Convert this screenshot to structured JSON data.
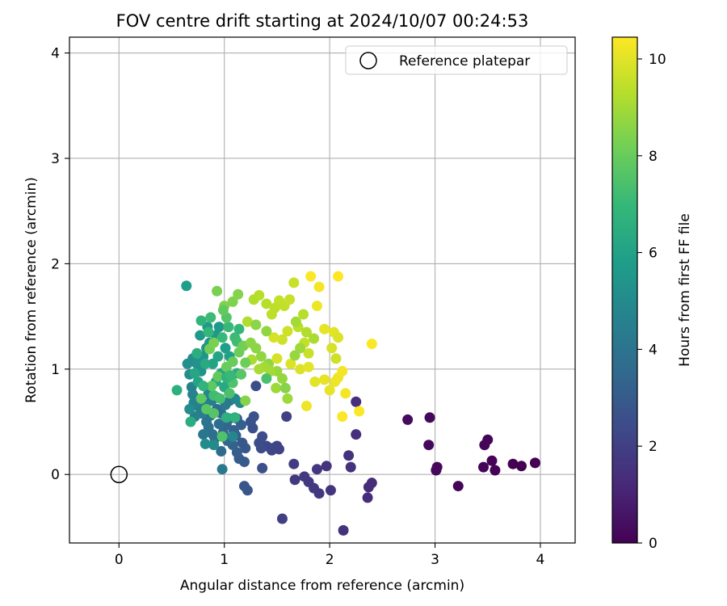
{
  "chart_data": {
    "type": "scatter",
    "title": "FOV centre drift starting at 2024/10/07 00:24:53",
    "xlabel": "Angular distance from reference (arcmin)",
    "ylabel": "Rotation from reference (arcmin)",
    "xlim": [
      -0.47,
      4.33
    ],
    "ylim": [
      -0.65,
      4.15
    ],
    "xticks": [
      0,
      1,
      2,
      3,
      4
    ],
    "yticks": [
      0,
      1,
      2,
      3,
      4
    ],
    "xtick_labels": [
      "0",
      "1",
      "2",
      "3",
      "4"
    ],
    "ytick_labels": [
      "0",
      "1",
      "2",
      "3",
      "4"
    ],
    "grid": true,
    "legend": {
      "placement": "top-right",
      "entries": [
        "Reference platepar"
      ]
    },
    "reference_point": {
      "name": "Reference platepar",
      "x": 0,
      "y": 0
    },
    "colorbar": {
      "label": "Hours from first FF file",
      "colormap": "viridis",
      "range": [
        0,
        10.45
      ],
      "ticks": [
        0,
        2,
        4,
        6,
        8,
        10
      ],
      "tick_labels": [
        "0",
        "2",
        "4",
        "6",
        "8",
        "10"
      ]
    },
    "colormap_stops": [
      "#440154",
      "#482878",
      "#3e4989",
      "#31688e",
      "#26828e",
      "#1f9e89",
      "#35b779",
      "#6ece58",
      "#b5de2b",
      "#fde725"
    ],
    "points": [
      [
        3.95,
        0.11,
        0.0
      ],
      [
        3.82,
        0.08,
        0.0
      ],
      [
        3.74,
        0.1,
        0.0
      ],
      [
        3.57,
        0.04,
        0.05
      ],
      [
        3.54,
        0.13,
        0.05
      ],
      [
        3.5,
        0.33,
        0.1
      ],
      [
        3.47,
        0.28,
        0.1
      ],
      [
        3.46,
        0.07,
        0.1
      ],
      [
        3.22,
        -0.11,
        0.15
      ],
      [
        3.02,
        0.07,
        0.2
      ],
      [
        3.01,
        0.04,
        0.2
      ],
      [
        2.95,
        0.54,
        0.25
      ],
      [
        2.94,
        0.28,
        0.25
      ],
      [
        2.74,
        0.52,
        0.3
      ],
      [
        2.4,
        -0.08,
        1.3
      ],
      [
        2.37,
        -0.12,
        1.3
      ],
      [
        2.36,
        -0.22,
        1.35
      ],
      [
        2.25,
        0.69,
        1.4
      ],
      [
        2.25,
        0.38,
        1.4
      ],
      [
        2.2,
        0.07,
        1.5
      ],
      [
        2.18,
        0.18,
        1.5
      ],
      [
        2.13,
        -0.53,
        1.5
      ],
      [
        2.01,
        -0.15,
        1.6
      ],
      [
        1.97,
        0.08,
        1.6
      ],
      [
        1.9,
        -0.18,
        1.7
      ],
      [
        1.88,
        0.05,
        1.7
      ],
      [
        1.85,
        -0.13,
        1.75
      ],
      [
        1.8,
        -0.07,
        1.75
      ],
      [
        1.76,
        -0.02,
        1.8
      ],
      [
        1.67,
        -0.05,
        1.8
      ],
      [
        1.66,
        0.1,
        1.9
      ],
      [
        1.59,
        0.55,
        2.0
      ],
      [
        1.55,
        -0.42,
        2.0
      ],
      [
        1.52,
        0.24,
        2.1
      ],
      [
        1.5,
        0.27,
        2.1
      ],
      [
        1.46,
        0.25,
        2.2
      ],
      [
        1.45,
        0.23,
        2.2
      ],
      [
        1.4,
        0.27,
        2.3
      ],
      [
        1.36,
        0.36,
        2.4
      ],
      [
        1.35,
        0.25,
        2.4
      ],
      [
        1.33,
        0.3,
        2.5
      ],
      [
        1.3,
        0.84,
        2.5
      ],
      [
        1.36,
        0.06,
        2.6
      ],
      [
        1.27,
        0.44,
        2.6
      ],
      [
        1.25,
        0.5,
        2.7
      ],
      [
        1.28,
        0.55,
        2.7
      ],
      [
        1.22,
        -0.15,
        2.8
      ],
      [
        1.19,
        -0.11,
        2.8
      ],
      [
        1.2,
        0.25,
        2.9
      ],
      [
        1.17,
        0.3,
        2.9
      ],
      [
        1.19,
        0.12,
        3.0
      ],
      [
        1.14,
        0.15,
        3.0
      ],
      [
        1.12,
        0.21,
        3.1
      ],
      [
        1.11,
        0.37,
        3.1
      ],
      [
        1.16,
        0.47,
        3.2
      ],
      [
        1.12,
        0.53,
        3.2
      ],
      [
        1.08,
        0.28,
        3.3
      ],
      [
        1.09,
        0.42,
        3.3
      ],
      [
        1.05,
        0.53,
        3.4
      ],
      [
        1.02,
        0.47,
        3.4
      ],
      [
        1.03,
        0.32,
        3.5
      ],
      [
        0.99,
        0.4,
        3.5
      ],
      [
        0.97,
        0.58,
        3.6
      ],
      [
        0.97,
        0.22,
        3.6
      ],
      [
        0.95,
        0.48,
        3.7
      ],
      [
        0.93,
        0.62,
        3.7
      ],
      [
        0.91,
        0.34,
        3.8
      ],
      [
        0.89,
        0.38,
        3.8
      ],
      [
        0.87,
        0.56,
        3.9
      ],
      [
        0.85,
        0.45,
        3.9
      ],
      [
        0.83,
        0.5,
        4.0
      ],
      [
        0.81,
        0.67,
        4.0
      ],
      [
        0.8,
        0.38,
        4.1
      ],
      [
        0.98,
        0.05,
        4.2
      ],
      [
        1.05,
        0.7,
        4.2
      ],
      [
        1.01,
        0.66,
        4.3
      ],
      [
        0.93,
        0.73,
        4.3
      ],
      [
        0.88,
        0.7,
        4.4
      ],
      [
        0.78,
        0.58,
        4.4
      ],
      [
        0.76,
        0.64,
        4.5
      ],
      [
        0.74,
        0.72,
        4.5
      ],
      [
        0.72,
        0.55,
        4.6
      ],
      [
        0.71,
        0.68,
        4.6
      ],
      [
        0.7,
        0.76,
        4.7
      ],
      [
        0.69,
        0.83,
        4.7
      ],
      [
        1.08,
        0.36,
        4.8
      ],
      [
        1.1,
        0.72,
        4.8
      ],
      [
        1.15,
        0.68,
        4.9
      ],
      [
        0.85,
        0.77,
        4.9
      ],
      [
        0.9,
        0.28,
        5.0
      ],
      [
        0.82,
        0.29,
        5.0
      ],
      [
        0.67,
        0.62,
        5.1
      ],
      [
        0.67,
        0.95,
        5.1
      ],
      [
        0.65,
        1.05,
        5.2
      ],
      [
        0.7,
        1.1,
        5.2
      ],
      [
        0.74,
        1.05,
        5.3
      ],
      [
        0.78,
        0.98,
        5.3
      ],
      [
        0.8,
        1.12,
        5.4
      ],
      [
        0.83,
        1.2,
        5.4
      ],
      [
        0.86,
        1.25,
        5.5
      ],
      [
        0.92,
        1.32,
        5.5
      ],
      [
        0.95,
        1.4,
        5.6
      ],
      [
        0.77,
        1.32,
        5.6
      ],
      [
        0.84,
        1.4,
        5.7
      ],
      [
        0.64,
        1.79,
        5.8
      ],
      [
        1.01,
        1.2,
        5.8
      ],
      [
        1.05,
        1.12,
        5.9
      ],
      [
        0.89,
        1.05,
        6.0
      ],
      [
        0.97,
        0.96,
        6.0
      ],
      [
        0.75,
        0.88,
        6.1
      ],
      [
        0.72,
        0.96,
        6.2
      ],
      [
        0.92,
        0.88,
        6.2
      ],
      [
        1.0,
        0.83,
        6.3
      ],
      [
        1.12,
        0.96,
        6.4
      ],
      [
        0.68,
        0.5,
        6.5
      ],
      [
        0.55,
        0.8,
        6.6
      ],
      [
        1.02,
        0.54,
        6.6
      ],
      [
        1.1,
        0.54,
        6.7
      ],
      [
        0.78,
        1.46,
        6.8
      ],
      [
        0.85,
        1.35,
        6.9
      ],
      [
        0.98,
        1.3,
        7.0
      ],
      [
        1.04,
        1.4,
        7.0
      ],
      [
        1.1,
        1.3,
        7.1
      ],
      [
        1.12,
        1.26,
        7.2
      ],
      [
        0.9,
        0.75,
        7.2
      ],
      [
        0.96,
        0.72,
        7.3
      ],
      [
        1.05,
        0.77,
        7.4
      ],
      [
        0.98,
        0.36,
        7.5
      ],
      [
        1.08,
        0.87,
        7.5
      ],
      [
        0.9,
        0.58,
        7.6
      ],
      [
        0.83,
        0.62,
        7.7
      ],
      [
        0.78,
        0.72,
        7.8
      ],
      [
        0.88,
        0.84,
        7.8
      ],
      [
        0.94,
        0.93,
        7.9
      ],
      [
        1.02,
        1.02,
        8.0
      ],
      [
        1.08,
        1.07,
        8.0
      ],
      [
        1.14,
        1.16,
        8.1
      ],
      [
        1.18,
        1.22,
        8.2
      ],
      [
        0.86,
        1.19,
        8.2
      ],
      [
        0.9,
        1.25,
        8.3
      ],
      [
        0.93,
        1.74,
        8.3
      ],
      [
        1.0,
        1.6,
        8.4
      ],
      [
        1.08,
        1.64,
        8.4
      ],
      [
        1.13,
        1.71,
        8.5
      ],
      [
        1.2,
        0.7,
        8.5
      ],
      [
        1.25,
        1.25,
        8.6
      ],
      [
        1.3,
        1.2,
        8.6
      ],
      [
        1.35,
        1.12,
        8.7
      ],
      [
        1.42,
        1.05,
        8.7
      ],
      [
        1.5,
        0.98,
        8.8
      ],
      [
        1.55,
        0.91,
        8.8
      ],
      [
        1.49,
        0.82,
        8.9
      ],
      [
        1.6,
        0.72,
        8.9
      ],
      [
        1.44,
        0.98,
        9.0
      ],
      [
        1.38,
        1.02,
        9.0
      ],
      [
        1.33,
        1.0,
        9.1
      ],
      [
        1.26,
        1.09,
        9.1
      ],
      [
        1.22,
        1.45,
        9.2
      ],
      [
        1.28,
        1.66,
        9.2
      ],
      [
        1.33,
        1.7,
        9.3
      ],
      [
        1.4,
        1.62,
        9.3
      ],
      [
        1.45,
        1.52,
        9.4
      ],
      [
        1.48,
        1.58,
        9.4
      ],
      [
        1.52,
        1.65,
        9.5
      ],
      [
        1.57,
        1.6,
        9.5
      ],
      [
        1.62,
        1.66,
        9.6
      ],
      [
        1.66,
        1.82,
        9.6
      ],
      [
        1.6,
        1.36,
        9.7
      ],
      [
        1.55,
        1.28,
        9.7
      ],
      [
        1.47,
        1.3,
        9.8
      ],
      [
        1.5,
        1.1,
        9.8
      ],
      [
        1.63,
        1.05,
        9.9
      ],
      [
        1.72,
        1.0,
        9.9
      ],
      [
        1.8,
        1.02,
        10.0
      ],
      [
        1.86,
        0.88,
        10.0
      ],
      [
        1.95,
        0.9,
        10.1
      ],
      [
        2.0,
        0.8,
        10.1
      ],
      [
        2.05,
        0.88,
        10.2
      ],
      [
        2.08,
        0.92,
        10.2
      ],
      [
        2.12,
        0.98,
        10.3
      ],
      [
        2.15,
        0.77,
        10.3
      ],
      [
        2.12,
        0.55,
        10.4
      ],
      [
        2.28,
        0.6,
        10.4
      ],
      [
        2.4,
        1.24,
        10.4
      ],
      [
        2.08,
        1.88,
        10.45
      ],
      [
        1.82,
        1.88,
        10.4
      ],
      [
        1.9,
        1.78,
        10.3
      ],
      [
        1.88,
        1.6,
        10.2
      ],
      [
        1.95,
        1.38,
        10.1
      ],
      [
        2.04,
        1.35,
        10.0
      ],
      [
        2.08,
        1.3,
        9.9
      ],
      [
        2.02,
        1.2,
        9.8
      ],
      [
        2.06,
        1.1,
        9.7
      ],
      [
        1.8,
        1.15,
        9.6
      ],
      [
        1.76,
        1.25,
        9.5
      ],
      [
        1.7,
        1.4,
        9.4
      ],
      [
        1.75,
        1.52,
        9.3
      ],
      [
        1.78,
        1.35,
        9.2
      ],
      [
        1.85,
        1.29,
        9.1
      ],
      [
        1.68,
        1.45,
        9.0
      ],
      [
        1.72,
        1.2,
        8.9
      ],
      [
        1.67,
        1.13,
        8.8
      ],
      [
        1.4,
        1.36,
        8.7
      ],
      [
        1.3,
        1.42,
        8.6
      ],
      [
        1.58,
        0.82,
        8.5
      ],
      [
        1.78,
        0.65,
        10.2
      ],
      [
        1.4,
        0.91,
        7.4
      ],
      [
        1.02,
        1.49,
        7.6
      ],
      [
        0.99,
        1.56,
        7.9
      ],
      [
        0.87,
        1.49,
        7.1
      ],
      [
        1.14,
        1.38,
        6.9
      ],
      [
        1.16,
        0.95,
        7.7
      ],
      [
        1.2,
        1.06,
        8.1
      ],
      [
        0.8,
        0.84,
        6.8
      ],
      [
        0.74,
        1.15,
        6.5
      ],
      [
        0.82,
        1.05,
        6.3
      ],
      [
        1.02,
        0.92,
        6.7
      ],
      [
        1.06,
        0.94,
        7.0
      ],
      [
        0.94,
        1.12,
        6.1
      ]
    ]
  }
}
